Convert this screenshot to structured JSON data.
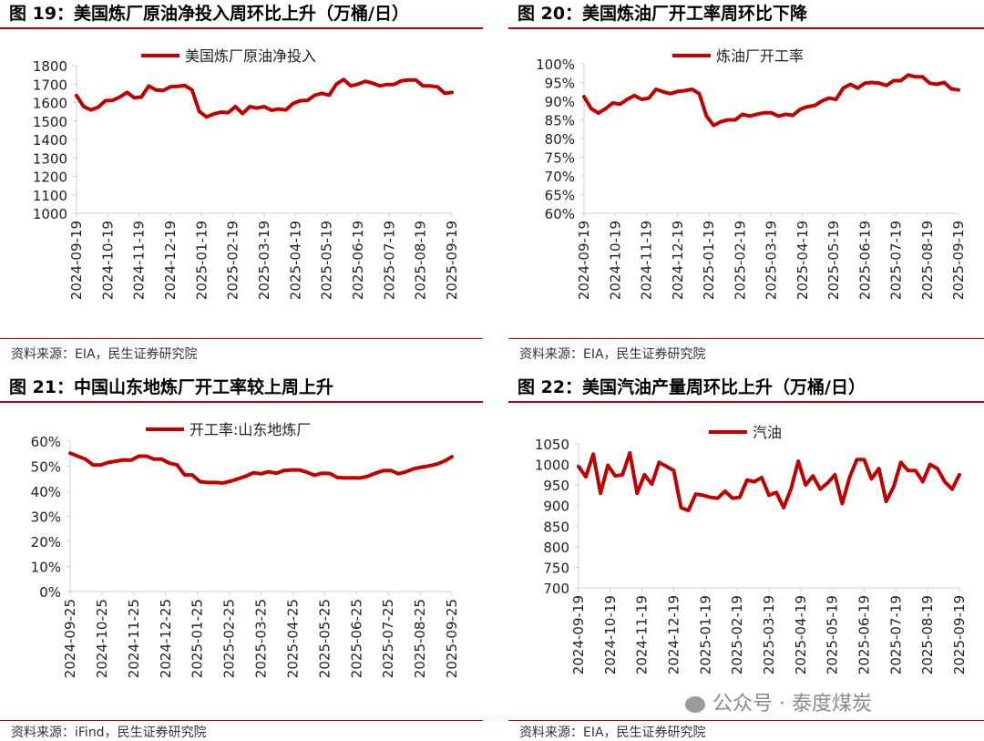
{
  "panels": [
    {
      "title": "图 19：美国炼厂原油净投入周环比上升（万桶/日）",
      "source": "资料来源：EIA，民生证券研究院"
    },
    {
      "title": "图 20：美国炼油厂开工率周环比下降",
      "source": "资料来源：EIA，民生证券研究院"
    },
    {
      "title": "图 21：中国山东地炼厂开工率较上周上升",
      "source": "资料来源：iFind，民生证券研究院"
    },
    {
      "title": "图 22：美国汽油产量周环比上升（万桶/日）",
      "source": "资料来源：EIA，民生证券研究院"
    }
  ],
  "watermark": "公众号 · 泰度煤炭",
  "colors": {
    "line": "#c00000",
    "rule": "#b40000",
    "axis": "#d0d0d0"
  },
  "chart_data": [
    {
      "type": "line",
      "title": "",
      "series": [
        {
          "name": "美国炼厂原油净投入",
          "values": [
            1638,
            1578,
            1560,
            1575,
            1610,
            1612,
            1630,
            1655,
            1625,
            1630,
            1690,
            1668,
            1665,
            1685,
            1688,
            1692,
            1668,
            1552,
            1522,
            1538,
            1548,
            1545,
            1578,
            1540,
            1578,
            1570,
            1578,
            1558,
            1565,
            1560,
            1595,
            1610,
            1612,
            1640,
            1650,
            1640,
            1700,
            1725,
            1690,
            1700,
            1715,
            1705,
            1690,
            1698,
            1698,
            1718,
            1722,
            1722,
            1690,
            1690,
            1685,
            1650,
            1655
          ]
        }
      ],
      "x_start": "2024-09-19",
      "x_end": "2025-09-19",
      "x_ticks": [
        "2024-09-19",
        "2024-10-19",
        "2024-11-19",
        "2024-12-19",
        "2025-01-19",
        "2025-02-19",
        "2025-03-19",
        "2025-04-19",
        "2025-05-19",
        "2025-06-19",
        "2025-07-19",
        "2025-08-19",
        "2025-09-19"
      ],
      "y_ticks": [
        "1800",
        "1700",
        "1600",
        "1500",
        "1400",
        "1300",
        "1200",
        "1100",
        "1000"
      ],
      "ylim": [
        1000,
        1800
      ]
    },
    {
      "type": "line",
      "title": "",
      "series": [
        {
          "name": "炼油厂开工率",
          "values": [
            91.2,
            88.0,
            86.8,
            88.0,
            89.5,
            89.2,
            90.5,
            91.5,
            90.5,
            90.8,
            93.2,
            92.5,
            92.0,
            92.6,
            92.8,
            93.2,
            92.0,
            86.0,
            83.5,
            84.5,
            85.0,
            85.0,
            86.5,
            86.0,
            86.5,
            86.9,
            86.9,
            86.0,
            86.5,
            86.2,
            87.8,
            88.5,
            88.8,
            90.0,
            90.8,
            90.5,
            93.5,
            94.5,
            93.5,
            94.8,
            95.0,
            94.8,
            94.2,
            95.5,
            95.5,
            97.0,
            96.5,
            96.5,
            94.8,
            94.5,
            95.0,
            93.3,
            93.0
          ]
        }
      ],
      "x_start": "2024-09-19",
      "x_end": "2025-09-19",
      "x_ticks": [
        "2024-09-19",
        "2024-10-19",
        "2024-11-19",
        "2024-12-19",
        "2025-01-19",
        "2025-02-19",
        "2025-03-19",
        "2025-04-19",
        "2025-05-19",
        "2025-06-19",
        "2025-07-19",
        "2025-08-19",
        "2025-09-19"
      ],
      "y_ticks": [
        "100%",
        "95%",
        "90%",
        "85%",
        "80%",
        "75%",
        "70%",
        "65%",
        "60%"
      ],
      "ylim": [
        60,
        100
      ]
    },
    {
      "type": "line",
      "title": "",
      "series": [
        {
          "name": "开工率:山东地炼厂",
          "values": [
            55.2,
            54.0,
            52.8,
            50.5,
            50.5,
            51.5,
            52.0,
            52.5,
            52.4,
            54.0,
            54.0,
            52.8,
            52.8,
            51.2,
            50.5,
            46.5,
            46.5,
            43.8,
            43.5,
            43.5,
            43.3,
            44.0,
            45.0,
            46.0,
            47.4,
            47.0,
            47.8,
            47.2,
            48.3,
            48.5,
            48.5,
            47.6,
            46.4,
            47.2,
            47.1,
            45.5,
            45.3,
            45.4,
            45.3,
            46.0,
            47.2,
            48.2,
            48.3,
            47.0,
            47.8,
            49.0,
            49.6,
            50.1,
            50.8,
            52.0,
            53.8
          ]
        }
      ],
      "x_start": "2024-09-25",
      "x_end": "2025-09-25",
      "x_ticks": [
        "2024-09-25",
        "2024-10-25",
        "2024-11-25",
        "2024-12-25",
        "2025-01-25",
        "2025-02-25",
        "2025-03-25",
        "2025-04-25",
        "2025-05-25",
        "2025-06-25",
        "2025-07-25",
        "2025-08-25",
        "2025-09-25"
      ],
      "y_ticks": [
        "60%",
        "50%",
        "40%",
        "30%",
        "20%",
        "10%",
        "0%"
      ],
      "ylim": [
        0,
        60
      ]
    },
    {
      "type": "line",
      "title": "",
      "series": [
        {
          "name": "汽油",
          "values": [
            995,
            970,
            1025,
            930,
            998,
            972,
            975,
            1028,
            930,
            975,
            952,
            1005,
            995,
            985,
            895,
            888,
            928,
            925,
            920,
            918,
            935,
            918,
            920,
            962,
            958,
            968,
            925,
            932,
            895,
            940,
            1008,
            950,
            972,
            940,
            955,
            975,
            905,
            968,
            1012,
            1012,
            965,
            990,
            910,
            945,
            1005,
            985,
            985,
            958,
            1000,
            990,
            958,
            940,
            975
          ]
        }
      ],
      "x_start": "2024-09-19",
      "x_end": "2025-09-19",
      "x_ticks": [
        "2024-09-19",
        "2024-10-19",
        "2024-11-19",
        "2024-12-19",
        "2025-01-19",
        "2025-02-19",
        "2025-03-19",
        "2025-04-19",
        "2025-05-19",
        "2025-06-19",
        "2025-07-19",
        "2025-08-19",
        "2025-09-19"
      ],
      "y_ticks": [
        "1050",
        "1000",
        "950",
        "900",
        "850",
        "800",
        "750",
        "700"
      ],
      "ylim": [
        700,
        1050
      ]
    }
  ]
}
